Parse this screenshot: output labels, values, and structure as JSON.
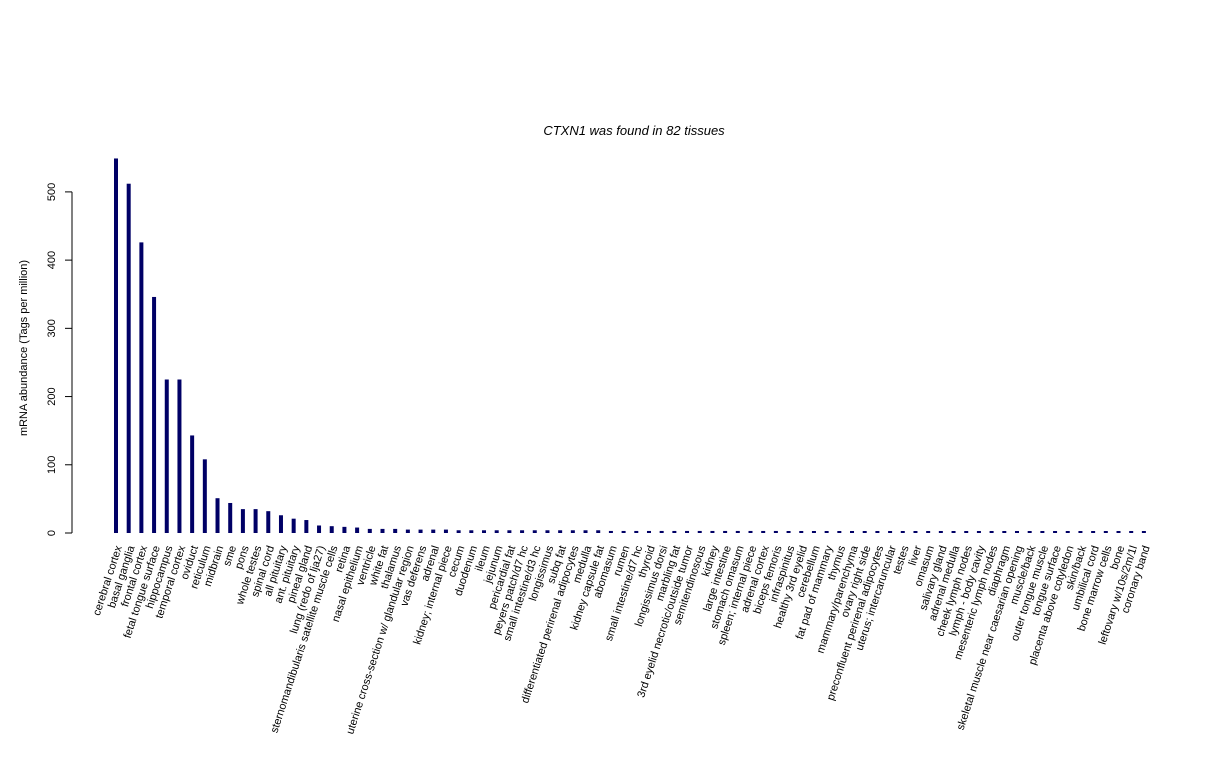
{
  "chart_data": {
    "type": "bar",
    "title": "CTXN1  was found in  82  tissues",
    "xlabel": "",
    "ylabel": "mRNA abundance (Tags per million)",
    "ylim": [
      0,
      550
    ],
    "yticks": [
      0,
      100,
      200,
      300,
      400,
      500
    ],
    "grid": false,
    "bar_color": "#000066",
    "categories": [
      "cerebral cortex",
      "basal ganglia",
      "frontal cortex",
      "fetal tongue surface",
      "hippocampus",
      "temporal cortex",
      "oviduct",
      "reticulum",
      "midbrain",
      "sme",
      "pons",
      "whole testes",
      "spinal cord",
      "all pituitary",
      "ant. pituitary",
      "pineal gland",
      "lung (redo of lja27)",
      "sternomandibularis satellite muscle cells",
      "retina",
      "nasal epithelium",
      "ventricle",
      "white fat",
      "thalamus",
      "uterine cross-section w/ glandular region",
      "vas deferens",
      "adrenal",
      "kidney; internal piece",
      "cecum",
      "duodenum",
      "ileum",
      "jejunum",
      "pericardial fat",
      "peyers patch/d7 hc",
      "small intestine/d3 hc",
      "longissimus",
      "subq fat",
      "differentiated perirenal adipocytes",
      "medulla",
      "kidney capsule fat",
      "abomasum",
      "rumen",
      "small intestine/d7 hc",
      "thyroid",
      "longissimus dorsi",
      "marbling fat",
      "3rd eyelid necrotic/outside tumor",
      "semitendinosous",
      "kidney",
      "large intestine",
      "stomach omasum",
      "spleen; internal piece",
      "adrenal cortex",
      "biceps femoris",
      "infraspinitus",
      "healthy 3rd eyelid",
      "cerebellum",
      "fat pad of mammary",
      "thymus",
      "mammary/parenchyma",
      "ovary right side",
      "preconfluent perirenal adipocytes",
      "uterus; intercaruncular",
      "testes",
      "liver",
      "omasum",
      "salivary gland",
      "adrenal medulla",
      "cheek lymph nodes",
      "lymph - body cavity",
      "mesenteric lymph nodes",
      "diaphragm",
      "skeletal muscle near caesarian opening",
      "muscle/back",
      "outer tongue muscle",
      "tongue surface",
      "placenta above cotyledon",
      "skin/back",
      "umbilical cord",
      "bone marrow cells",
      "bone",
      "leftovary w/10s/2m/1l",
      "coronary band"
    ],
    "values": [
      549,
      512,
      426,
      346,
      225,
      225,
      143,
      108,
      51,
      44,
      35,
      35,
      32,
      26,
      21,
      19,
      11,
      10,
      9,
      8,
      6,
      6,
      6,
      5,
      5,
      5,
      5,
      4,
      4,
      4,
      4,
      4,
      4,
      4,
      4,
      4,
      4,
      4,
      4,
      3,
      3,
      3,
      3,
      3,
      3,
      3,
      3,
      3,
      3,
      3,
      3,
      3,
      3,
      2,
      2,
      2,
      2,
      2,
      2,
      2,
      2,
      2,
      2,
      2,
      2,
      2,
      2,
      2,
      2,
      2,
      2,
      2,
      2,
      2,
      2,
      2,
      2,
      2,
      2,
      2,
      2,
      2
    ]
  }
}
